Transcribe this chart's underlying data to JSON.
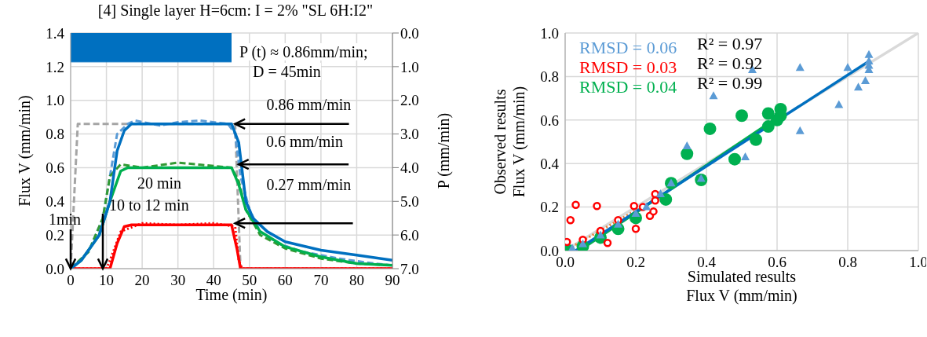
{
  "chart_data": [
    {
      "type": "line",
      "title": "[4] Single layer H=6cm: I = 2% \"SL 6H:I2\"",
      "xlabel": "Time (min)",
      "ylabel": "Flux V (mm/min)",
      "y2label": "P (mm/min)",
      "xlim": [
        0,
        90
      ],
      "xticks": [
        0,
        10,
        20,
        30,
        40,
        50,
        60,
        70,
        80,
        90
      ],
      "ylim": [
        0,
        1.4
      ],
      "yticks": [
        {
          "value": 0,
          "label": "0.0"
        },
        {
          "value": 0.2,
          "label": "0.2"
        },
        {
          "value": 0.4,
          "label": "0.4"
        },
        {
          "value": 0.6,
          "label": "0.6"
        },
        {
          "value": 0.8,
          "label": "0.8"
        },
        {
          "value": 1,
          "label": "1.0"
        },
        {
          "value": 1.2,
          "label": "1.2"
        },
        {
          "value": 1.4,
          "label": "1.4"
        }
      ],
      "y2lim": [
        7,
        0
      ],
      "y2ticks": [
        {
          "value": 0,
          "label": "0.0"
        },
        {
          "value": 1,
          "label": "1.0"
        },
        {
          "value": 2,
          "label": "2.0"
        },
        {
          "value": 3,
          "label": "3.0"
        },
        {
          "value": 4,
          "label": "4.0"
        },
        {
          "value": 5,
          "label": "5.0"
        },
        {
          "value": 6,
          "label": "6.0"
        },
        {
          "value": 7,
          "label": "7.0"
        }
      ],
      "grid": true,
      "legend": false,
      "series": [
        {
          "type": "area",
          "axis": "y2",
          "color": "#0070c0",
          "x": [
            0,
            45
          ],
          "values": [
            0.86,
            0.86
          ]
        },
        {
          "color": "#a5a5a5",
          "line_style": "dashed",
          "x": [
            0,
            2,
            46,
            47.5,
            90
          ],
          "values": [
            0,
            0.86,
            0.86,
            0,
            0
          ]
        },
        {
          "color": "#5b9bd5",
          "line_style": "dashed",
          "x": [
            0,
            5,
            9,
            11,
            13,
            16,
            18,
            25,
            30,
            36,
            44,
            46,
            47.5,
            50,
            53,
            58,
            65,
            75,
            85,
            90
          ],
          "values": [
            0,
            0.1,
            0.3,
            0.55,
            0.8,
            0.86,
            0.88,
            0.85,
            0.87,
            0.88,
            0.86,
            0.8,
            0.55,
            0.35,
            0.22,
            0.15,
            0.1,
            0.06,
            0.03,
            0.02
          ]
        },
        {
          "color": "#339933",
          "line_style": "dashed",
          "x": [
            0,
            5,
            9,
            11,
            14,
            20,
            30,
            40,
            45,
            47,
            49,
            53,
            60,
            70,
            80,
            90
          ],
          "values": [
            0,
            0.1,
            0.3,
            0.55,
            0.62,
            0.6,
            0.63,
            0.61,
            0.6,
            0.52,
            0.35,
            0.2,
            0.12,
            0.06,
            0.03,
            0.02
          ]
        },
        {
          "color": "#ff0000",
          "line_style": "dotted",
          "x": [
            0,
            10,
            11,
            14,
            20,
            30,
            40,
            46,
            47,
            48,
            90
          ],
          "values": [
            0,
            0,
            0.05,
            0.22,
            0.27,
            0.26,
            0.27,
            0.25,
            0.05,
            0,
            0
          ]
        },
        {
          "color": "#00b050",
          "x": [
            0,
            3,
            8,
            11,
            14,
            16,
            45,
            47,
            49,
            53,
            60,
            70,
            80,
            90
          ],
          "values": [
            0,
            0.05,
            0.2,
            0.4,
            0.58,
            0.6,
            0.6,
            0.5,
            0.35,
            0.22,
            0.13,
            0.07,
            0.03,
            0.02
          ]
        },
        {
          "color": "#ff0000",
          "x": [
            0,
            11,
            13,
            15,
            17,
            45,
            46.5,
            47.5,
            90
          ],
          "values": [
            0,
            0,
            0.15,
            0.25,
            0.26,
            0.26,
            0.12,
            0,
            0
          ]
        },
        {
          "color": "#0070c0",
          "x": [
            0,
            3,
            8,
            11,
            13,
            15,
            17,
            45,
            47,
            49,
            51,
            55,
            60,
            70,
            80,
            90
          ],
          "values": [
            0,
            0.05,
            0.2,
            0.4,
            0.7,
            0.82,
            0.86,
            0.86,
            0.75,
            0.4,
            0.3,
            0.22,
            0.16,
            0.11,
            0.08,
            0.05
          ]
        }
      ],
      "annotations": [
        "P (t) ≈ 0.86mm/min;",
        "D = 45min",
        "20 min",
        {
          "text": "0.86 mm/min",
          "x": 46,
          "y": 0.86
        },
        {
          "text": "0.6 mm/min",
          "x": 47,
          "y": 0.62
        },
        {
          "text": "0.27 mm/min",
          "x": 46,
          "y": 0.27
        },
        {
          "text": "10 to 12 min",
          "x": 9,
          "y": 0
        },
        {
          "text": "1min",
          "x": 0,
          "y": 0
        }
      ]
    },
    {
      "type": "scatter",
      "xlabel": "Simulated results\nFlux V (mm/min)",
      "ylabel": "Observed results\nFlux V (mm/min)",
      "xlim": [
        0,
        1
      ],
      "xticks": [
        {
          "value": 0,
          "label": "0.0"
        },
        {
          "value": 0.2,
          "label": "0.2"
        },
        {
          "value": 0.4,
          "label": "0.4"
        },
        {
          "value": 0.6,
          "label": "0.6"
        },
        {
          "value": 0.8,
          "label": "0.8"
        },
        {
          "value": 1,
          "label": "1.0"
        }
      ],
      "ylim": [
        0,
        1
      ],
      "yticks": [
        {
          "value": 0,
          "label": "0.0"
        },
        {
          "value": 0.2,
          "label": "0.2"
        },
        {
          "value": 0.4,
          "label": "0.4"
        },
        {
          "value": 0.6,
          "label": "0.6"
        },
        {
          "value": 0.8,
          "label": "0.8"
        },
        {
          "value": 1,
          "label": "1.0"
        }
      ],
      "grid": true,
      "legend": false,
      "series": [
        {
          "color": "#5b9bd5",
          "marker": "triangle",
          "x": [
            0.86,
            0.86,
            0.86,
            0.86,
            0.8,
            0.85,
            0.83,
            0.775,
            0.665,
            0.665,
            0.53,
            0.42,
            0.51,
            0.345,
            0.385,
            0.3,
            0.27,
            0.23,
            0.2,
            0.15,
            0.1,
            0.05,
            0.02
          ],
          "values": [
            0.83,
            0.85,
            0.87,
            0.9,
            0.84,
            0.78,
            0.75,
            0.67,
            0.84,
            0.55,
            0.83,
            0.71,
            0.43,
            0.48,
            0.33,
            0.31,
            0.26,
            0.2,
            0.17,
            0.12,
            0.07,
            0.03,
            0.01
          ]
        },
        {
          "color": "#ff0000",
          "marker": "circle",
          "x": [
            0.015,
            0.03,
            0.09,
            0.195,
            0.005,
            0.12,
            0.2,
            0.24,
            0.25,
            0.255,
            0.255,
            0.22,
            0.15,
            0.1,
            0.05
          ],
          "values": [
            0.14,
            0.21,
            0.205,
            0.205,
            0.04,
            0.035,
            0.1,
            0.16,
            0.18,
            0.26,
            0.23,
            0.2,
            0.14,
            0.09,
            0.05
          ]
        },
        {
          "color": "#00b050",
          "marker": "circle",
          "x": [
            0.61,
            0.61,
            0.6,
            0.575,
            0.575,
            0.5,
            0.41,
            0.54,
            0.48,
            0.345,
            0.385,
            0.3,
            0.285,
            0.2,
            0.15,
            0.1,
            0.05,
            0.01
          ],
          "values": [
            0.65,
            0.62,
            0.6,
            0.63,
            0.57,
            0.62,
            0.56,
            0.51,
            0.42,
            0.445,
            0.325,
            0.31,
            0.235,
            0.15,
            0.1,
            0.06,
            0.02,
            0
          ]
        },
        {
          "type": "line",
          "color": "#d9d9d9",
          "marker": "none",
          "x": [
            0,
            1
          ],
          "values": [
            0,
            1
          ]
        },
        {
          "type": "line",
          "color": "#ed7d31",
          "marker": "none",
          "line_style": "dotted",
          "x": [
            0,
            0.26
          ],
          "values": [
            0,
            0.24
          ]
        },
        {
          "type": "line",
          "color": "#00b050",
          "marker": "none",
          "x": [
            0.04,
            0.6
          ],
          "values": [
            0,
            0.61
          ]
        },
        {
          "type": "line",
          "color": "#0070c0",
          "marker": "none",
          "x": [
            0.03,
            0.86
          ],
          "values": [
            0,
            0.87
          ]
        }
      ],
      "annotations": [
        "RMSD = 0.06",
        "RMSD = 0.03",
        "RMSD = 0.04",
        "R² = 0.97",
        "R² = 0.92",
        "R² = 0.99"
      ]
    }
  ]
}
